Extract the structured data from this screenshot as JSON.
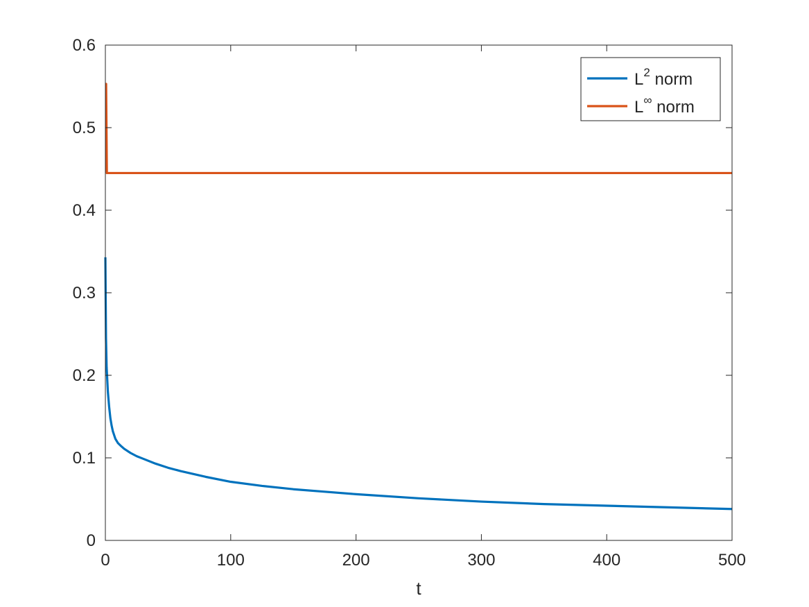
{
  "chart_data": {
    "type": "line",
    "title": "",
    "xlabel": "t",
    "ylabel": "",
    "xlim": [
      0,
      500
    ],
    "ylim": [
      0,
      0.6
    ],
    "xticks": [
      0,
      100,
      200,
      300,
      400,
      500
    ],
    "yticks": [
      0,
      0.1,
      0.2,
      0.3,
      0.4,
      0.5,
      0.6
    ],
    "xtick_labels": [
      "0",
      "100",
      "200",
      "300",
      "400",
      "500"
    ],
    "ytick_labels": [
      "0",
      "0.1",
      "0.2",
      "0.3",
      "0.4",
      "0.5",
      "0.6"
    ],
    "grid": false,
    "legend_position": "top-right",
    "series": [
      {
        "name": "L2 norm",
        "legend_base": "L",
        "legend_sup": "2",
        "legend_suffix": " norm",
        "color": "#0072BD",
        "x": [
          0,
          0.5,
          1,
          2,
          3,
          4,
          5,
          6,
          8,
          10,
          12,
          15,
          20,
          25,
          30,
          40,
          50,
          60,
          80,
          100,
          125,
          150,
          175,
          200,
          250,
          300,
          350,
          400,
          450,
          500
        ],
        "y": [
          0.343,
          0.245,
          0.21,
          0.18,
          0.162,
          0.148,
          0.139,
          0.132,
          0.123,
          0.118,
          0.115,
          0.111,
          0.106,
          0.102,
          0.099,
          0.093,
          0.088,
          0.084,
          0.077,
          0.071,
          0.066,
          0.062,
          0.059,
          0.056,
          0.051,
          0.047,
          0.044,
          0.042,
          0.04,
          0.038
        ]
      },
      {
        "name": "L∞ norm",
        "legend_base": "L",
        "legend_sup": "∞",
        "legend_suffix": " norm",
        "color": "#D95319",
        "x": [
          0,
          0.6,
          1.2,
          500
        ],
        "y": [
          0.553,
          0.553,
          0.445,
          0.445
        ]
      }
    ]
  }
}
